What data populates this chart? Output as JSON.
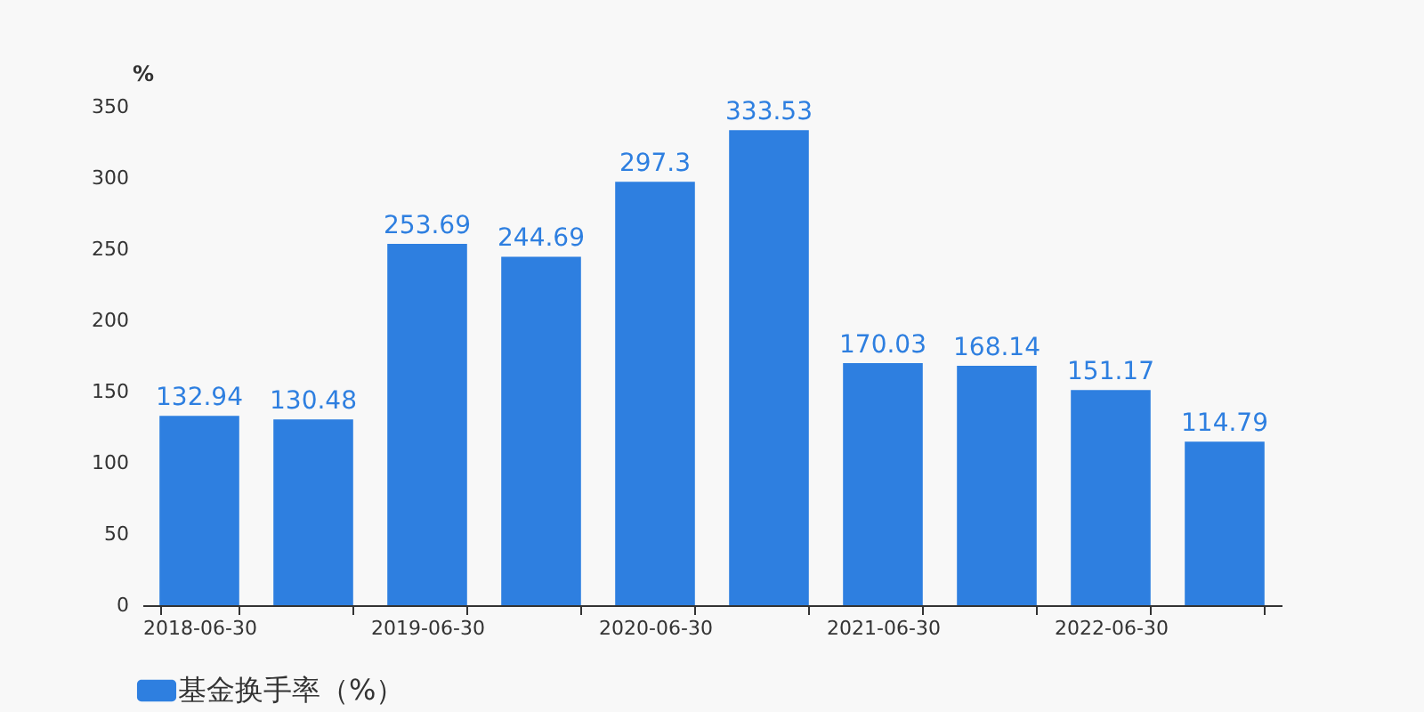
{
  "chart_data": {
    "type": "bar",
    "ylabel": "%",
    "categories": [
      "2018-06-30",
      null,
      "2019-06-30",
      null,
      "2020-06-30",
      null,
      "2021-06-30",
      null,
      "2022-06-30",
      null
    ],
    "series": [
      {
        "name": "基金换手率（%）",
        "color": "#2e7fe0",
        "values": [
          132.94,
          130.48,
          253.69,
          244.69,
          297.3,
          333.53,
          170.03,
          168.14,
          151.17,
          114.79
        ]
      }
    ],
    "ylim": [
      0,
      350
    ],
    "yticks": [
      0,
      50,
      100,
      150,
      200,
      250,
      300,
      350
    ],
    "grid": false,
    "legend": "bottom",
    "data_labels": true
  }
}
